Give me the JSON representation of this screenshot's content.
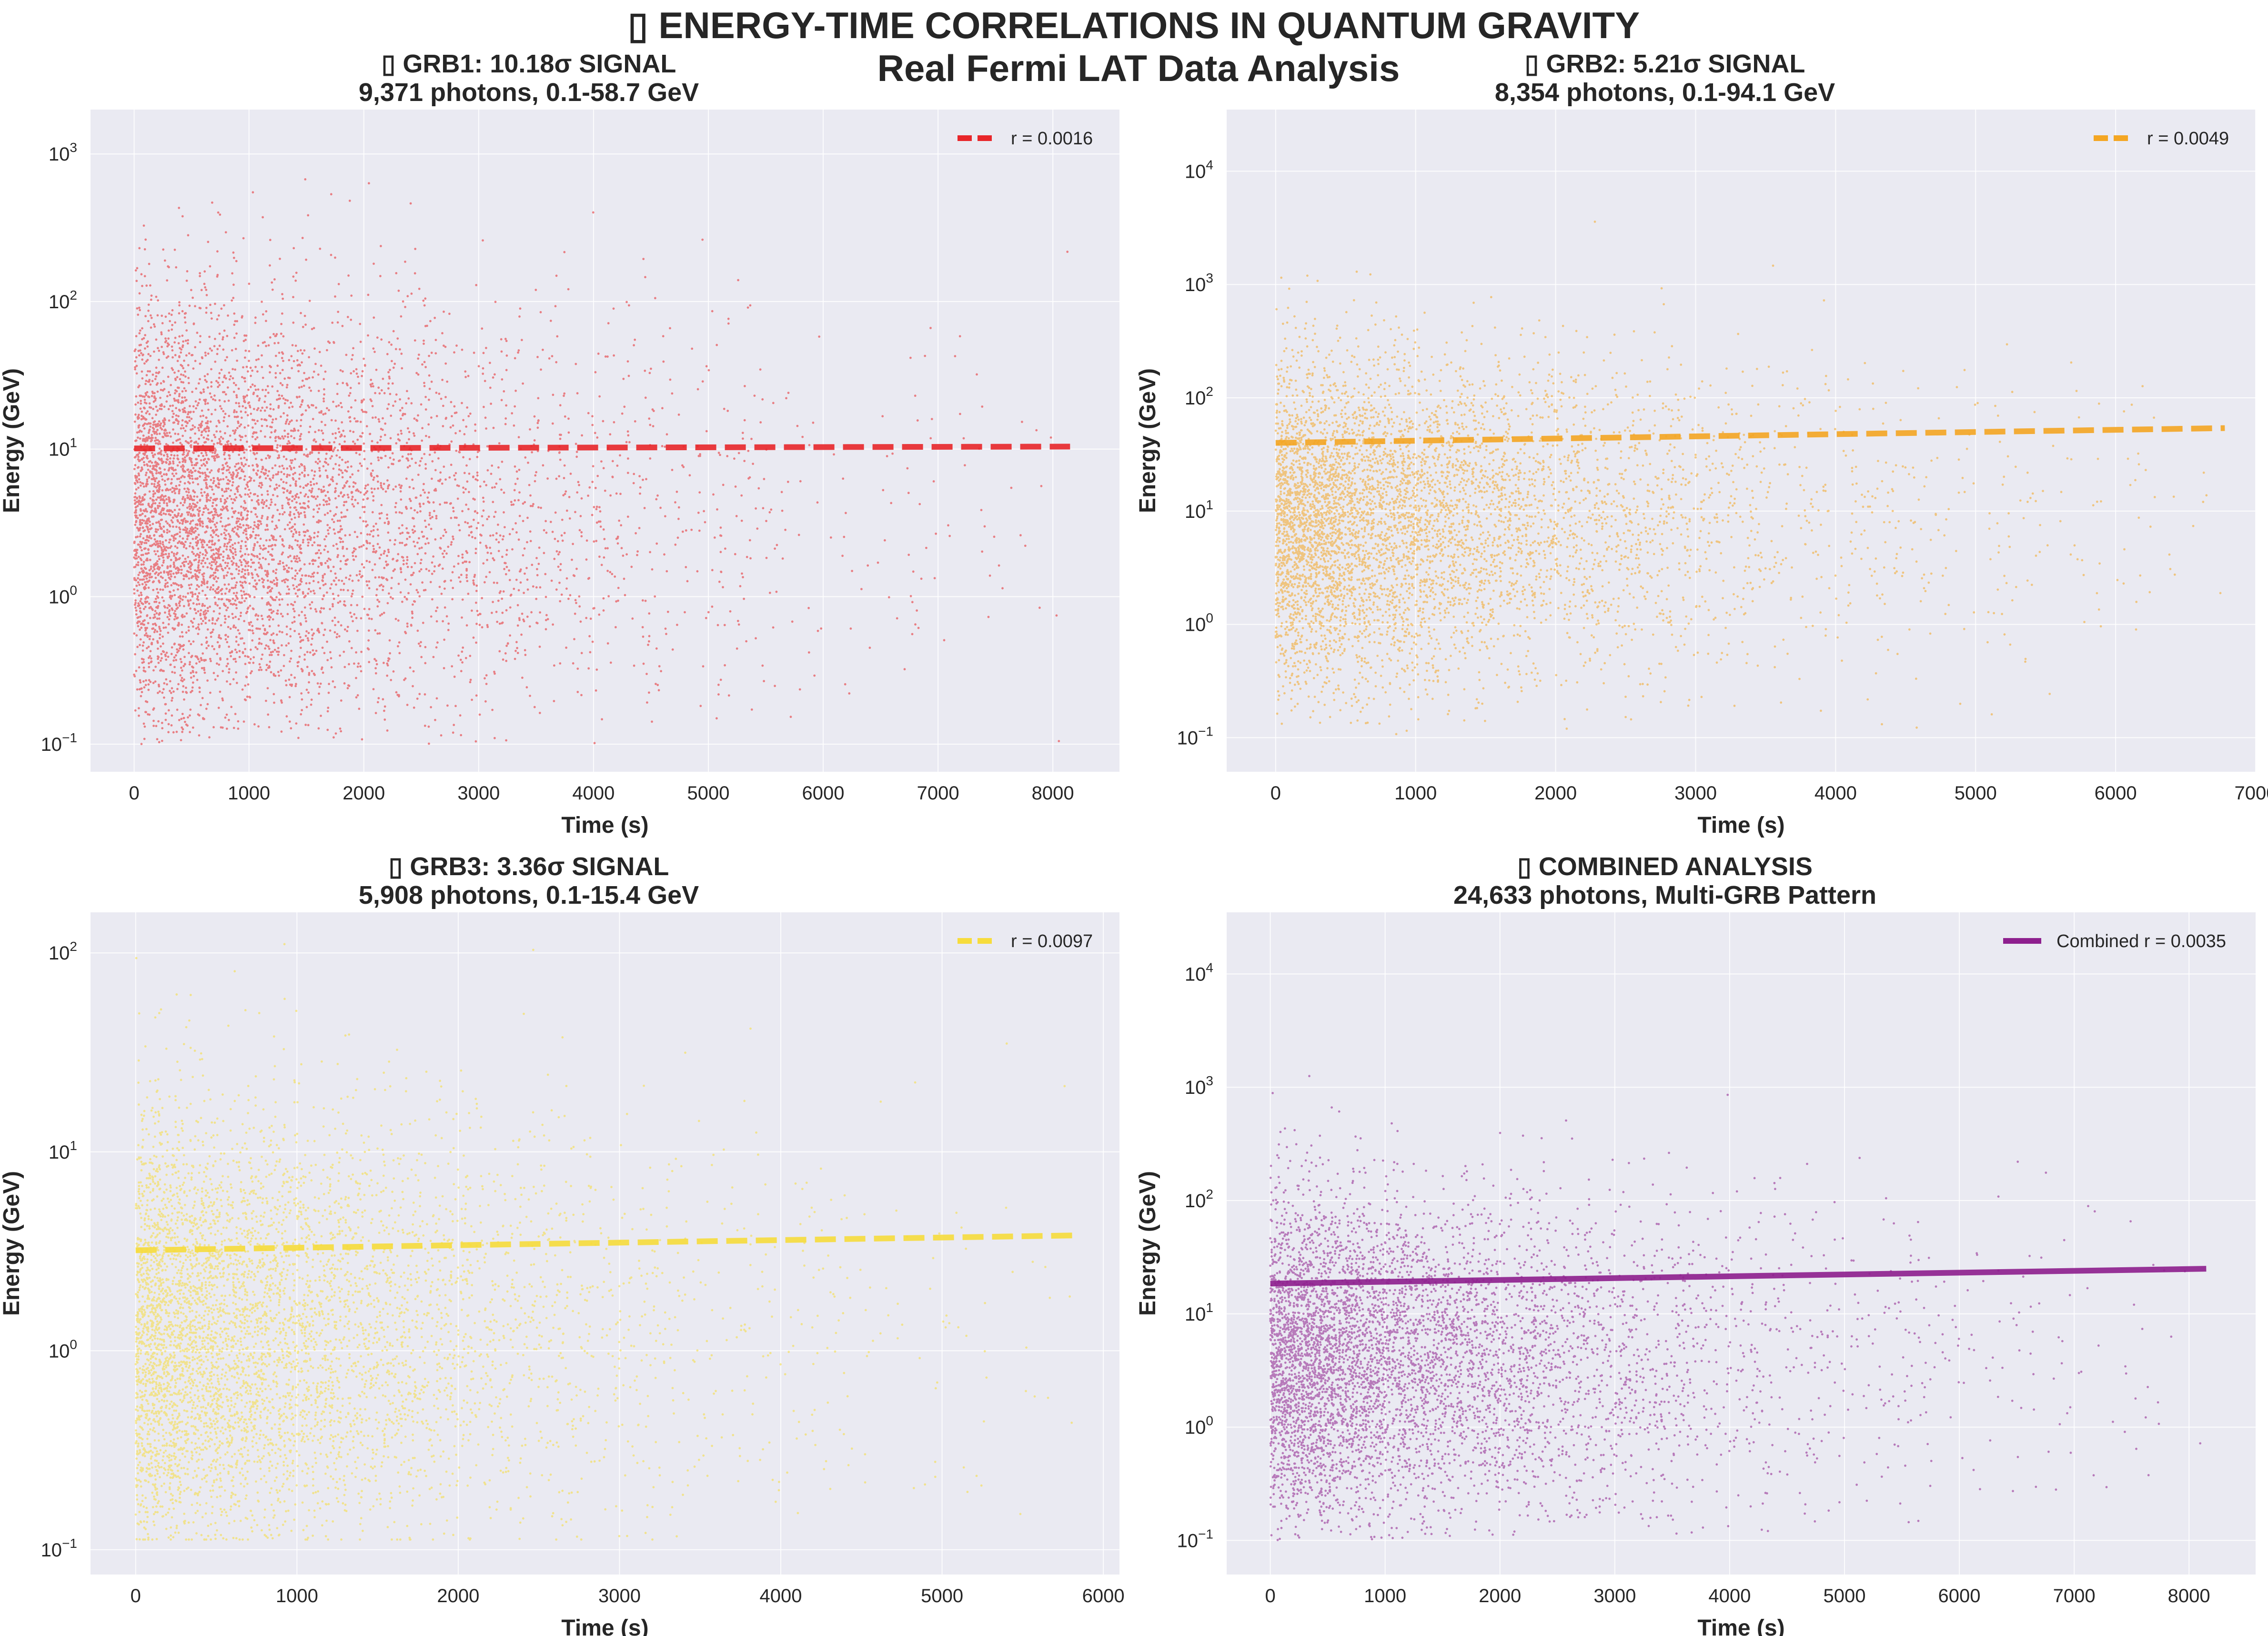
{
  "figure": {
    "title_line1": "▯ ENERGY-TIME CORRELATIONS IN QUANTUM GRAVITY",
    "title_line2": "Real Fermi LAT Data Analysis"
  },
  "colors": {
    "panel_bg": "#eaeaf2",
    "grid": "#ffffff",
    "text": "#262626"
  },
  "chart_data": [
    {
      "type": "scatter",
      "title_line1": "▯ GRB1: 10.18σ SIGNAL",
      "title_line2": "9,371 photons, 0.1-58.7 GeV",
      "xlabel": "Time (s)",
      "ylabel": "Energy (GeV)",
      "xlim": [
        -380,
        8580
      ],
      "ylim": [
        0.065,
        2000
      ],
      "yscale": "log",
      "xticks": [
        0,
        1000,
        2000,
        3000,
        4000,
        5000,
        6000,
        7000,
        8000
      ],
      "yticks": [
        {
          "value": 0.1,
          "label": "10",
          "exp": "−1"
        },
        {
          "value": 1,
          "label": "10",
          "exp": "0"
        },
        {
          "value": 10,
          "label": "10",
          "exp": "1"
        },
        {
          "value": 100,
          "label": "10",
          "exp": "2"
        },
        {
          "value": 1000,
          "label": "10",
          "exp": "3"
        }
      ],
      "color": "#e8262a",
      "photon_count": 9371,
      "time_max": 8150,
      "energy_median": 3.5,
      "energy_spread": 0.7,
      "fit": {
        "x": [
          0,
          8150
        ],
        "y": [
          10.1,
          10.4
        ]
      },
      "fit_style": "dashed",
      "legend": {
        "label": "r = 0.0016",
        "loc": "upper right"
      },
      "grid": true
    },
    {
      "type": "scatter",
      "title_line1": "▯ GRB2: 5.21σ SIGNAL",
      "title_line2": "8,354 photons, 0.1-94.1 GeV",
      "xlabel": "Time (s)",
      "ylabel": "Energy (GeV)",
      "xlim": [
        -350,
        7000
      ],
      "ylim": [
        0.05,
        35000
      ],
      "yscale": "log",
      "xticks": [
        0,
        1000,
        2000,
        3000,
        4000,
        5000,
        6000,
        7000
      ],
      "yticks": [
        {
          "value": 0.1,
          "label": "10",
          "exp": "−1"
        },
        {
          "value": 1,
          "label": "10",
          "exp": "0"
        },
        {
          "value": 10,
          "label": "10",
          "exp": "1"
        },
        {
          "value": 100,
          "label": "10",
          "exp": "2"
        },
        {
          "value": 1000,
          "label": "10",
          "exp": "3"
        },
        {
          "value": 10000,
          "label": "10",
          "exp": "4"
        }
      ],
      "color": "#f4a623",
      "photon_count": 8354,
      "time_max": 6780,
      "energy_median": 8,
      "energy_spread": 0.7,
      "fit": {
        "x": [
          0,
          6780
        ],
        "y": [
          40,
          54
        ]
      },
      "fit_style": "dashed",
      "legend": {
        "label": "r = 0.0049",
        "loc": "upper right"
      },
      "grid": true
    },
    {
      "type": "scatter",
      "title_line1": "▯ GRB3: 3.36σ SIGNAL",
      "title_line2": "5,908 photons, 0.1-15.4 GeV",
      "xlabel": "Time (s)",
      "ylabel": "Energy (GeV)",
      "xlim": [
        -280,
        6100
      ],
      "ylim": [
        0.075,
        160
      ],
      "yscale": "log",
      "xticks": [
        0,
        1000,
        2000,
        3000,
        4000,
        5000,
        6000
      ],
      "yticks": [
        {
          "value": 0.1,
          "label": "10",
          "exp": "−1"
        },
        {
          "value": 1,
          "label": "10",
          "exp": "0"
        },
        {
          "value": 10,
          "label": "10",
          "exp": "1"
        },
        {
          "value": 100,
          "label": "10",
          "exp": "2"
        }
      ],
      "color": "#f7dc3c",
      "photon_count": 5908,
      "time_max": 5820,
      "energy_median": 1.2,
      "energy_spread": 0.55,
      "fit": {
        "x": [
          0,
          5820
        ],
        "y": [
          3.2,
          3.8
        ]
      },
      "fit_style": "dashed",
      "legend": {
        "label": "r = 0.0097",
        "loc": "upper right"
      },
      "grid": true
    },
    {
      "type": "scatter",
      "title_line1": "▯ COMBINED ANALYSIS",
      "title_line2": "24,633 photons, Multi-GRB Pattern",
      "xlabel": "Time (s)",
      "ylabel": "Energy (GeV)",
      "xlim": [
        -380,
        8580
      ],
      "ylim": [
        0.05,
        35000
      ],
      "yscale": "log",
      "xticks": [
        0,
        1000,
        2000,
        3000,
        4000,
        5000,
        6000,
        7000,
        8000
      ],
      "yticks": [
        {
          "value": 0.1,
          "label": "10",
          "exp": "−1"
        },
        {
          "value": 1,
          "label": "10",
          "exp": "0"
        },
        {
          "value": 10,
          "label": "10",
          "exp": "1"
        },
        {
          "value": 100,
          "label": "10",
          "exp": "2"
        },
        {
          "value": 1000,
          "label": "10",
          "exp": "3"
        },
        {
          "value": 10000,
          "label": "10",
          "exp": "4"
        }
      ],
      "color": "#8e1f8e",
      "photon_count": 24633,
      "time_max": 8150,
      "energy_median": 4,
      "energy_spread": 0.7,
      "fit": {
        "x": [
          0,
          8150
        ],
        "y": [
          18.5,
          25
        ]
      },
      "fit_style": "solid",
      "legend": {
        "label": "Combined r = 0.0035",
        "loc": "upper right"
      },
      "grid": true
    }
  ]
}
